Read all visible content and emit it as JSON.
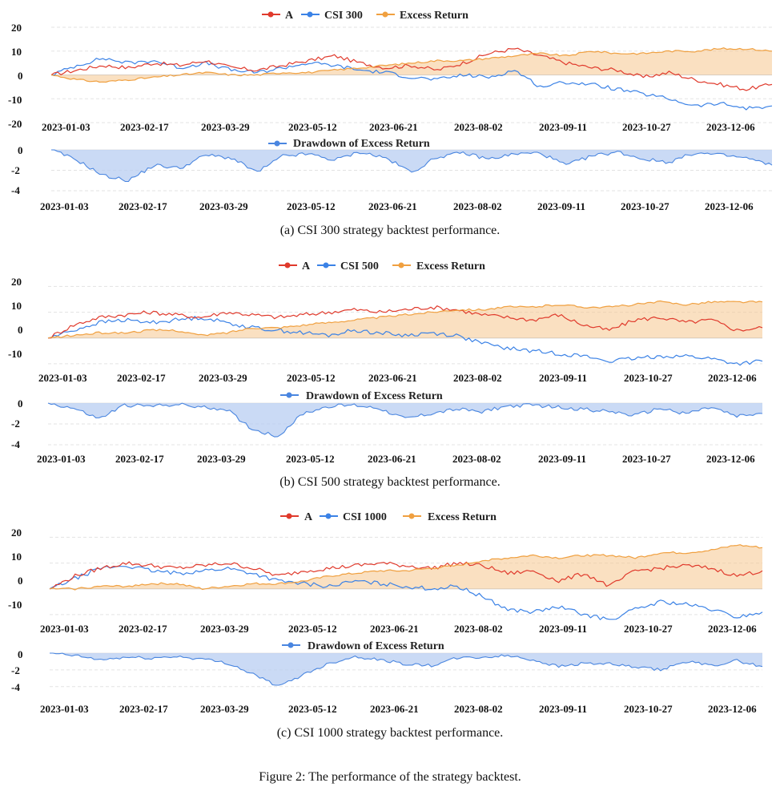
{
  "figure_caption": "Figure 2: The performance of the strategy backtest.",
  "colors": {
    "strategy": "#e03a2c",
    "benchmark": "#3b82e6",
    "excess": "#f0a040",
    "excess_fill": "#f6c78e",
    "drawdown": "#4a86e0",
    "drawdown_fill": "#b8cdf2",
    "grid": "#e3e3e3"
  },
  "chart_data": [
    {
      "type": "line",
      "panel": "a",
      "caption": "(a)  CSI 300 strategy backtest performance.",
      "legend": [
        "A",
        "CSI 300",
        "Excess Return"
      ],
      "x_ticks": [
        "2023-01-03",
        "2023-02-17",
        "2023-03-29",
        "2023-05-12",
        "2023-06-21",
        "2023-08-02",
        "2023-09-11",
        "2023-10-27",
        "2023-12-06"
      ],
      "ylim": [
        -20,
        20
      ],
      "y_ticks": [
        "20",
        "10",
        "0",
        "-10",
        "-20"
      ],
      "series": [
        {
          "name": "A",
          "values": [
            0,
            2,
            4,
            3,
            5,
            4,
            6,
            3,
            2,
            4,
            6,
            8,
            5,
            3,
            4,
            2,
            5,
            9,
            11,
            8,
            5,
            3,
            2,
            -1,
            1,
            -2,
            -4,
            -6,
            -4
          ]
        },
        {
          "name": "CSI 300",
          "values": [
            0,
            4,
            7,
            5,
            6,
            3,
            5,
            2,
            1,
            3,
            5,
            4,
            2,
            1,
            -1,
            -2,
            0,
            -1,
            2,
            -5,
            -3,
            -4,
            -6,
            -8,
            -10,
            -13,
            -12,
            -14,
            -13
          ]
        },
        {
          "name": "Excess Return",
          "values": [
            0,
            -2,
            -3,
            -2,
            -1,
            0,
            1,
            0,
            0,
            1,
            1,
            2,
            3,
            4,
            5,
            6,
            6,
            7,
            8,
            9,
            8,
            10,
            9,
            9,
            10,
            10,
            11,
            11,
            10
          ]
        }
      ],
      "drawdown": {
        "legend": "Drawdown of Excess Return",
        "ylim": [
          -4,
          0
        ],
        "y_ticks": [
          "0",
          "-2",
          "-4"
        ],
        "values": [
          0,
          -1,
          -2.5,
          -3,
          -1.5,
          -1.8,
          -0.5,
          -0.8,
          -2.2,
          -0.6,
          -0.4,
          -1,
          -0.2,
          -0.8,
          -2.2,
          -0.7,
          -0.3,
          -0.9,
          -0.4,
          -0.3,
          -1.5,
          -0.6,
          -0.2,
          -0.9,
          -1.2,
          -0.3,
          -0.5,
          -0.8,
          -1.5
        ]
      }
    },
    {
      "type": "line",
      "panel": "b",
      "caption": "(b)  CSI 500 strategy backtest performance.",
      "legend": [
        "A",
        "CSI 500",
        "Excess Return"
      ],
      "x_ticks": [
        "2023-01-03",
        "2023-02-17",
        "2023-03-29",
        "2023-05-12",
        "2023-06-21",
        "2023-08-02",
        "2023-09-11",
        "2023-10-27",
        "2023-12-06"
      ],
      "ylim": [
        -15,
        22
      ],
      "y_ticks": [
        "20",
        "10",
        "0",
        "-10"
      ],
      "series": [
        {
          "name": "A",
          "values": [
            0,
            5,
            8,
            9,
            10,
            9,
            8,
            10,
            9,
            8,
            9,
            10,
            11,
            10,
            11,
            12,
            11,
            9,
            8,
            7,
            9,
            5,
            3,
            7,
            8,
            6,
            7,
            3,
            4
          ]
        },
        {
          "name": "CSI 500",
          "values": [
            0,
            3,
            6,
            7,
            6,
            7,
            8,
            6,
            4,
            3,
            2,
            1,
            3,
            2,
            1,
            2,
            1,
            -2,
            -4,
            -5,
            -6,
            -7,
            -9,
            -8,
            -7,
            -7,
            -8,
            -10,
            -9
          ]
        },
        {
          "name": "Excess Return",
          "values": [
            0,
            1,
            2,
            2,
            3,
            3,
            1,
            2,
            4,
            4,
            5,
            6,
            7,
            8,
            9,
            10,
            11,
            11,
            12,
            12,
            13,
            12,
            12,
            13,
            14,
            13,
            14,
            14,
            14
          ]
        }
      ],
      "drawdown": {
        "legend": "Drawdown of Excess Return",
        "ylim": [
          -4,
          0
        ],
        "y_ticks": [
          "0",
          "-2",
          "-4"
        ],
        "values": [
          0,
          -0.5,
          -1.5,
          -0.2,
          -0.3,
          -0.1,
          -0.4,
          -0.6,
          -2.5,
          -3.2,
          -1,
          -0.3,
          -0.2,
          -0.5,
          -1.5,
          -1,
          -0.6,
          -0.8,
          -0.3,
          -0.2,
          -0.4,
          -0.6,
          -0.8,
          -1.2,
          -0.5,
          -1,
          -0.4,
          -1.3,
          -1
        ]
      }
    },
    {
      "type": "line",
      "panel": "c",
      "caption": "(c)  CSI 1000 strategy backtest performance.",
      "legend": [
        "A",
        "CSI 1000",
        "Excess Return"
      ],
      "x_ticks": [
        "2023-01-03",
        "2023-02-17",
        "2023-03-29",
        "2023-05-12",
        "2023-06-21",
        "2023-08-02",
        "2023-09-11",
        "2023-10-27",
        "2023-12-06"
      ],
      "ylim": [
        -15,
        22
      ],
      "y_ticks": [
        "20",
        "10",
        "0",
        "-10"
      ],
      "series": [
        {
          "name": "A",
          "values": [
            0,
            5,
            8,
            10,
            9,
            8,
            9,
            10,
            8,
            5,
            7,
            8,
            9,
            10,
            9,
            8,
            10,
            9,
            6,
            7,
            3,
            6,
            1,
            7,
            8,
            9,
            8,
            5,
            7
          ]
        },
        {
          "name": "CSI 1000",
          "values": [
            0,
            4,
            8,
            9,
            7,
            6,
            7,
            8,
            6,
            3,
            2,
            1,
            3,
            2,
            1,
            0,
            1,
            -3,
            -8,
            -9,
            -7,
            -10,
            -12,
            -8,
            -5,
            -6,
            -8,
            -11,
            -9
          ]
        },
        {
          "name": "Excess Return",
          "values": [
            0,
            0,
            1,
            1,
            2,
            2,
            0,
            1,
            2,
            2,
            3,
            5,
            6,
            7,
            7,
            8,
            9,
            11,
            12,
            13,
            12,
            13,
            13,
            12,
            14,
            14,
            15,
            17,
            16
          ]
        }
      ],
      "drawdown": {
        "legend": "Drawdown of Excess Return",
        "ylim": [
          -4.5,
          0
        ],
        "y_ticks": [
          "0",
          "-2",
          "-4"
        ],
        "values": [
          0,
          -0.3,
          -0.8,
          -0.5,
          -0.6,
          -0.4,
          -0.7,
          -1.2,
          -2.5,
          -4,
          -2.5,
          -1.2,
          -0.4,
          -0.8,
          -1.3,
          -1.5,
          -0.6,
          -0.5,
          -0.3,
          -0.8,
          -1.6,
          -1.2,
          -1.3,
          -1.7,
          -2,
          -1,
          -1.5,
          -0.9,
          -1.6
        ]
      }
    }
  ]
}
